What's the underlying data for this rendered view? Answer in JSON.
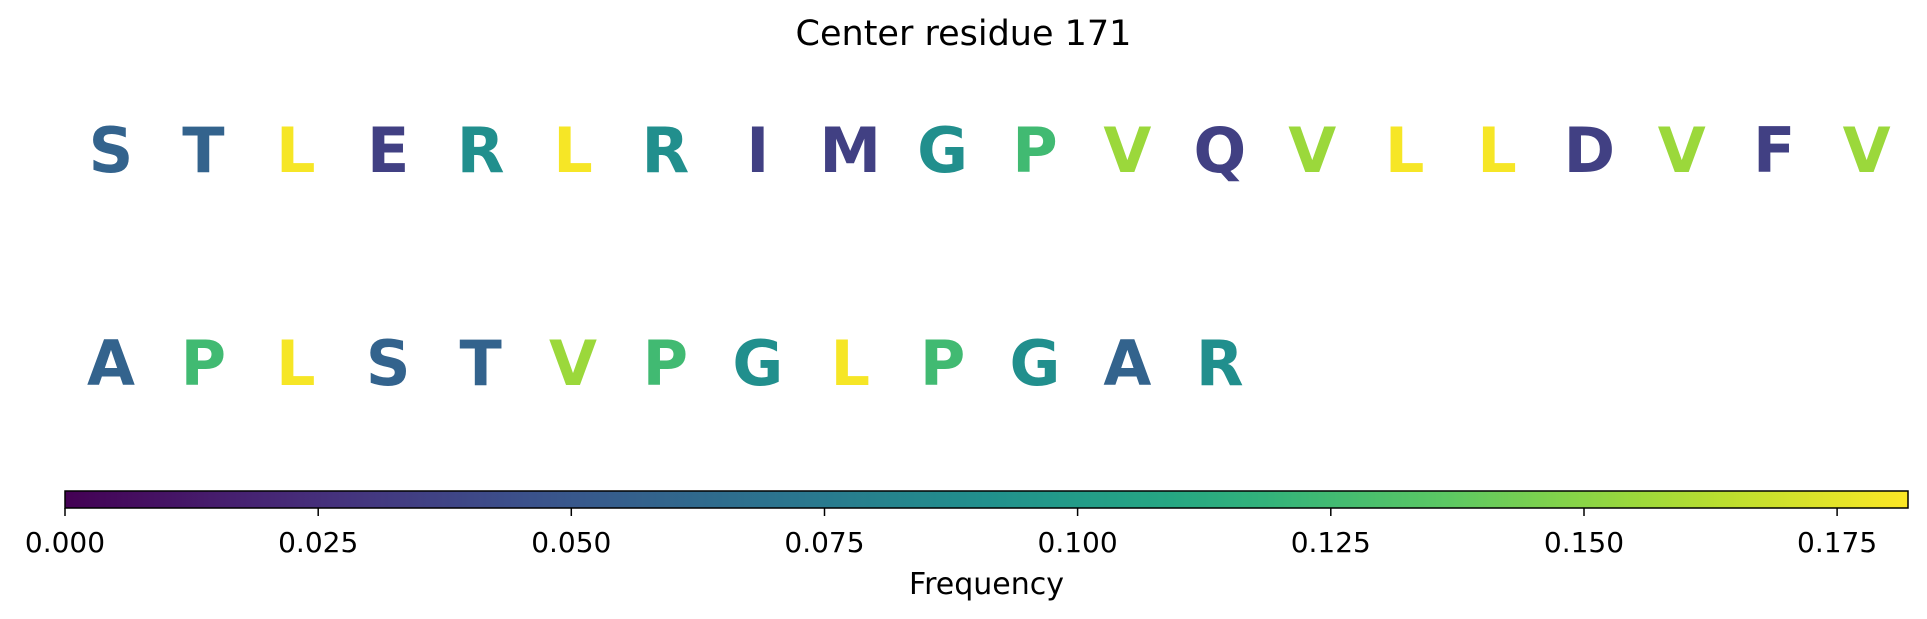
{
  "chart_data": {
    "type": "other",
    "title": "Center residue 171",
    "rows": [
      {
        "residues": [
          {
            "letter": "S",
            "frequency": 0.058
          },
          {
            "letter": "T",
            "frequency": 0.058
          },
          {
            "letter": "L",
            "frequency": 0.18
          },
          {
            "letter": "E",
            "frequency": 0.035
          },
          {
            "letter": "R",
            "frequency": 0.09
          },
          {
            "letter": "L",
            "frequency": 0.18
          },
          {
            "letter": "R",
            "frequency": 0.09
          },
          {
            "letter": "I",
            "frequency": 0.035
          },
          {
            "letter": "M",
            "frequency": 0.035
          },
          {
            "letter": "G",
            "frequency": 0.09
          },
          {
            "letter": "P",
            "frequency": 0.125
          },
          {
            "letter": "V",
            "frequency": 0.155
          },
          {
            "letter": "Q",
            "frequency": 0.035
          },
          {
            "letter": "V",
            "frequency": 0.155
          },
          {
            "letter": "L",
            "frequency": 0.18
          },
          {
            "letter": "L",
            "frequency": 0.18
          },
          {
            "letter": "D",
            "frequency": 0.035
          },
          {
            "letter": "V",
            "frequency": 0.155
          },
          {
            "letter": "F",
            "frequency": 0.035
          },
          {
            "letter": "V",
            "frequency": 0.155
          }
        ]
      },
      {
        "residues": [
          {
            "letter": "A",
            "frequency": 0.058
          },
          {
            "letter": "P",
            "frequency": 0.125
          },
          {
            "letter": "L",
            "frequency": 0.18
          },
          {
            "letter": "S",
            "frequency": 0.058
          },
          {
            "letter": "T",
            "frequency": 0.058
          },
          {
            "letter": "V",
            "frequency": 0.155
          },
          {
            "letter": "P",
            "frequency": 0.125
          },
          {
            "letter": "G",
            "frequency": 0.09
          },
          {
            "letter": "L",
            "frequency": 0.18
          },
          {
            "letter": "P",
            "frequency": 0.125
          },
          {
            "letter": "G",
            "frequency": 0.09
          },
          {
            "letter": "A",
            "frequency": 0.058
          },
          {
            "letter": "R",
            "frequency": 0.09
          }
        ]
      }
    ],
    "colorbar": {
      "label": "Frequency",
      "colormap": "viridis",
      "range": [
        0,
        0.182
      ],
      "ticks": [
        0.0,
        0.025,
        0.05,
        0.075,
        0.1,
        0.125,
        0.15,
        0.175
      ],
      "tick_labels": [
        "0.000",
        "0.025",
        "0.050",
        "0.075",
        "0.100",
        "0.125",
        "0.150",
        "0.175"
      ]
    }
  }
}
